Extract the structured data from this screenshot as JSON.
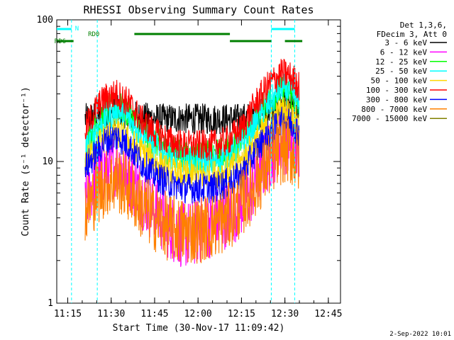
{
  "chart_data": {
    "type": "line",
    "title": "RHESSI Observing Summary Count Rates",
    "xlabel": "Start Time (30-Nov-17 11:09:42)",
    "ylabel": "Count Rate (s⁻¹ detector⁻¹)",
    "y_scale": "log",
    "ylim": [
      1,
      100
    ],
    "xlim_minutes": [
      11.2,
      11.8
    ],
    "x_ticks": [
      {
        "label": "11:15",
        "minute": 15
      },
      {
        "label": "11:30",
        "minute": 30
      },
      {
        "label": "11:45",
        "minute": 45
      },
      {
        "label": "12:00",
        "minute": 60
      },
      {
        "label": "12:15",
        "minute": 75
      },
      {
        "label": "12:30",
        "minute": 90
      },
      {
        "label": "12:45",
        "minute": 105
      }
    ],
    "y_ticks": [
      {
        "label": "1",
        "value": 1
      },
      {
        "label": "10",
        "value": 10
      },
      {
        "label": "100",
        "value": 100
      }
    ],
    "legend_header": [
      "Det 1,3,6,",
      "FDecim 3, Att 0"
    ],
    "footer": "2-Sep-2022 10:01",
    "flags": {
      "n_label": "N",
      "rd0_label": "RD0",
      "rd6_label": "RD6",
      "flag_color_cyan": "#00ffff",
      "flag_color_green": "#007f00"
    },
    "x_range": [
      11.5,
      109
    ],
    "series": [
      {
        "name": "3 - 6 keV",
        "color": "#000000",
        "keypoints": [
          [
            21,
            20
          ],
          [
            25,
            21
          ],
          [
            32,
            23
          ],
          [
            37,
            21
          ],
          [
            45,
            20
          ],
          [
            60,
            20
          ],
          [
            75,
            20
          ],
          [
            80,
            21
          ],
          [
            85,
            23
          ],
          [
            89,
            25
          ],
          [
            91,
            25
          ],
          [
            93,
            23
          ],
          [
            95,
            21
          ]
        ]
      },
      {
        "name": "6 - 12 keV",
        "color": "#ff00ff",
        "keypoints": [
          [
            21,
            5.5
          ],
          [
            25,
            7.5
          ],
          [
            28,
            9
          ],
          [
            32,
            9.5
          ],
          [
            36,
            8
          ],
          [
            40,
            6
          ],
          [
            45,
            4.5
          ],
          [
            50,
            3.5
          ],
          [
            55,
            3
          ],
          [
            60,
            3.2
          ],
          [
            68,
            4
          ],
          [
            72,
            4.5
          ],
          [
            77,
            5.5
          ],
          [
            82,
            9
          ],
          [
            86,
            12
          ],
          [
            89,
            14
          ],
          [
            91,
            14
          ],
          [
            93,
            13
          ],
          [
            95,
            11
          ]
        ]
      },
      {
        "name": "12 - 25 keV",
        "color": "#00ff00",
        "keypoints": [
          [
            21,
            13
          ],
          [
            25,
            18
          ],
          [
            28,
            22
          ],
          [
            32,
            25
          ],
          [
            36,
            22
          ],
          [
            40,
            17
          ],
          [
            45,
            14
          ],
          [
            50,
            12
          ],
          [
            55,
            11
          ],
          [
            60,
            11
          ],
          [
            65,
            11
          ],
          [
            70,
            12
          ],
          [
            75,
            14
          ],
          [
            80,
            20
          ],
          [
            85,
            28
          ],
          [
            89,
            32
          ],
          [
            91,
            31
          ],
          [
            93,
            28
          ],
          [
            95,
            24
          ]
        ]
      },
      {
        "name": "25 - 50 keV",
        "color": "#00ffff",
        "keypoints": [
          [
            21,
            12
          ],
          [
            25,
            17
          ],
          [
            28,
            20
          ],
          [
            32,
            23
          ],
          [
            36,
            20
          ],
          [
            40,
            16
          ],
          [
            45,
            13
          ],
          [
            50,
            11
          ],
          [
            55,
            10
          ],
          [
            60,
            10
          ],
          [
            65,
            10
          ],
          [
            70,
            11
          ],
          [
            75,
            13
          ],
          [
            80,
            19
          ],
          [
            85,
            26
          ],
          [
            89,
            33
          ],
          [
            91,
            32
          ],
          [
            93,
            30
          ],
          [
            95,
            25
          ]
        ]
      },
      {
        "name": "50 - 100 keV",
        "color": "#ffd700",
        "keypoints": [
          [
            21,
            10
          ],
          [
            25,
            13
          ],
          [
            28,
            15
          ],
          [
            32,
            16
          ],
          [
            36,
            14
          ],
          [
            40,
            12
          ],
          [
            45,
            10
          ],
          [
            50,
            8.5
          ],
          [
            55,
            8
          ],
          [
            60,
            8
          ],
          [
            65,
            8
          ],
          [
            70,
            8.5
          ],
          [
            75,
            10
          ],
          [
            80,
            14
          ],
          [
            85,
            19
          ],
          [
            89,
            23
          ],
          [
            91,
            22
          ],
          [
            93,
            20
          ],
          [
            95,
            18
          ]
        ]
      },
      {
        "name": "100 - 300 keV",
        "color": "#ff0000",
        "keypoints": [
          [
            21,
            17
          ],
          [
            25,
            24
          ],
          [
            28,
            28
          ],
          [
            32,
            30
          ],
          [
            36,
            26
          ],
          [
            40,
            20
          ],
          [
            45,
            16
          ],
          [
            50,
            14
          ],
          [
            55,
            13
          ],
          [
            60,
            13
          ],
          [
            65,
            13
          ],
          [
            70,
            14
          ],
          [
            75,
            17
          ],
          [
            80,
            26
          ],
          [
            85,
            36
          ],
          [
            89,
            42
          ],
          [
            91,
            41
          ],
          [
            93,
            38
          ],
          [
            95,
            34
          ]
        ]
      },
      {
        "name": "300 - 800 keV",
        "color": "#0000ff",
        "keypoints": [
          [
            21,
            9
          ],
          [
            25,
            11.5
          ],
          [
            28,
            14
          ],
          [
            32,
            15
          ],
          [
            36,
            13
          ],
          [
            40,
            10
          ],
          [
            45,
            8
          ],
          [
            50,
            7
          ],
          [
            55,
            6.5
          ],
          [
            60,
            6.5
          ],
          [
            65,
            6.5
          ],
          [
            70,
            7
          ],
          [
            75,
            8
          ],
          [
            80,
            12
          ],
          [
            85,
            16
          ],
          [
            89,
            19
          ],
          [
            91,
            19
          ],
          [
            93,
            18
          ],
          [
            95,
            16
          ]
        ]
      },
      {
        "name": "800 - 7000 keV",
        "color": "#ff8000",
        "keypoints": [
          [
            21,
            4.5
          ],
          [
            25,
            6
          ],
          [
            28,
            7
          ],
          [
            32,
            7.5
          ],
          [
            36,
            6.5
          ],
          [
            40,
            5
          ],
          [
            45,
            4
          ],
          [
            50,
            3.4
          ],
          [
            55,
            3.2
          ],
          [
            60,
            3.3
          ],
          [
            65,
            3.5
          ],
          [
            70,
            4
          ],
          [
            75,
            5
          ],
          [
            80,
            7
          ],
          [
            85,
            10
          ],
          [
            89,
            12
          ],
          [
            91,
            12
          ],
          [
            93,
            11
          ],
          [
            95,
            10
          ]
        ]
      },
      {
        "name": "7000 - 15000 keV",
        "color": "#808000",
        "keypoints": []
      }
    ],
    "vlines_minutes": [
      16.3,
      25.2,
      85.3,
      93.4
    ],
    "flag_segments": {
      "n": [
        [
          0,
          16.3
        ],
        [
          85.3,
          93.4
        ]
      ],
      "rd0": [
        [
          38,
          71
        ]
      ],
      "rd6": [
        [
          0,
          17
        ],
        [
          71,
          85.3
        ],
        [
          90,
          96
        ]
      ]
    },
    "grid": false,
    "legend_position": "right"
  }
}
